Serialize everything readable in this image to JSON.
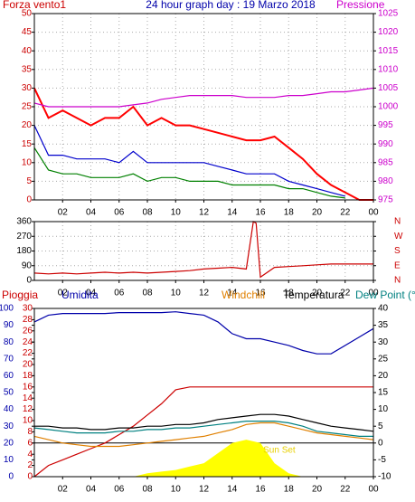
{
  "chart_data": [
    {
      "type": "line",
      "title": "24 hour graph day : 19 Marzo 2018",
      "y_label": "Forza vento1",
      "y2_label": "Pressione",
      "ycolor": "#cc0000",
      "y2color": "#cc00cc",
      "grid": true,
      "x": [
        0,
        1,
        2,
        3,
        4,
        5,
        6,
        7,
        8,
        9,
        10,
        11,
        12,
        13,
        14,
        15,
        16,
        17,
        18,
        19,
        20,
        21,
        22,
        23,
        24
      ],
      "xticks": [
        {
          "value": 2,
          "label": "02"
        },
        {
          "value": 4,
          "label": "04"
        },
        {
          "value": 6,
          "label": "06"
        },
        {
          "value": 8,
          "label": "08"
        },
        10,
        12,
        14,
        16,
        18,
        20,
        22,
        {
          "value": 24,
          "label": "00"
        }
      ],
      "xlim": [
        0,
        24
      ],
      "ylim": [
        0,
        50
      ],
      "yticks": [
        0,
        5,
        10,
        15,
        20,
        25,
        30,
        35,
        40,
        45,
        50
      ],
      "y2lim": [
        975,
        1025
      ],
      "y2ticks": [
        975,
        980,
        985,
        990,
        995,
        1000,
        1005,
        1010,
        1015,
        1020,
        1025
      ],
      "series": [
        {
          "color": "#ff0000",
          "values": [
            30,
            22,
            24,
            22,
            20,
            22,
            22,
            25,
            20,
            22,
            20,
            20,
            19,
            18,
            17,
            16,
            16,
            17,
            14,
            11,
            7,
            4,
            2,
            0,
            0
          ]
        },
        {
          "color": "#008000",
          "values": [
            14,
            8,
            7,
            7,
            6,
            6,
            6,
            7,
            5,
            6,
            6,
            5,
            5,
            5,
            4,
            4,
            4,
            4,
            3,
            3,
            2,
            1,
            0.5,
            null,
            null
          ]
        },
        {
          "color": "#0000cc",
          "values": [
            20,
            12,
            12,
            11,
            11,
            11,
            10,
            13,
            10,
            10,
            10,
            10,
            10,
            9,
            8,
            7,
            7,
            7,
            5,
            4,
            3,
            2,
            1,
            null,
            null
          ]
        },
        {
          "color": "#cc00cc",
          "axis": "y2",
          "values": [
            1001,
            1000,
            1000,
            1000,
            1000,
            1000,
            1000,
            1000.5,
            1001,
            1002,
            1002.5,
            1003,
            1003,
            1003,
            1003,
            1002.5,
            1002.5,
            1002.5,
            1003,
            1003,
            1003.5,
            1004,
            1004,
            1004.5,
            1005
          ]
        }
      ]
    },
    {
      "type": "line",
      "ycolor": "#000000",
      "y2color": "#cc0000",
      "grid": true,
      "x": [
        0,
        1,
        2,
        3,
        4,
        5,
        6,
        7,
        8,
        9,
        10,
        11,
        12,
        13,
        14,
        15,
        15.5,
        15.7,
        16,
        17,
        18,
        19,
        20,
        21,
        22,
        23,
        24
      ],
      "xticks": [
        {
          "value": 2,
          "label": "02"
        },
        {
          "value": 4,
          "label": "04"
        },
        {
          "value": 6,
          "label": "06"
        },
        {
          "value": 8,
          "label": "08"
        },
        10,
        12,
        14,
        16,
        18,
        20,
        22,
        {
          "value": 24,
          "label": "00"
        }
      ],
      "xlim": [
        0,
        24
      ],
      "ylim": [
        0,
        360
      ],
      "yticks": [
        0,
        90,
        180,
        270,
        360
      ],
      "y2lim": [
        0,
        360
      ],
      "y2ticks": [
        {
          "value": 0,
          "label": "N"
        },
        {
          "value": 90,
          "label": "E"
        },
        {
          "value": 180,
          "label": "S"
        },
        {
          "value": 270,
          "label": "W"
        },
        {
          "value": 360,
          "label": "N"
        }
      ],
      "series": [
        {
          "color": "#cc0000",
          "values": [
            45,
            40,
            45,
            40,
            45,
            50,
            45,
            50,
            45,
            50,
            55,
            60,
            70,
            75,
            80,
            70,
            360,
            350,
            20,
            80,
            85,
            90,
            95,
            100,
            100,
            100,
            100
          ]
        }
      ]
    },
    {
      "type": "line",
      "annotation": "Sun Set",
      "ycolor": "#0000aa",
      "y3color": "#cc0000",
      "y2color": "#000000",
      "grid": false,
      "x": [
        0,
        1,
        2,
        3,
        4,
        5,
        6,
        7,
        8,
        9,
        10,
        11,
        12,
        13,
        14,
        15,
        16,
        17,
        18,
        19,
        20,
        21,
        22,
        23,
        24
      ],
      "xticks": [
        {
          "value": 2,
          "label": "02"
        },
        {
          "value": 4,
          "label": "04"
        },
        {
          "value": 6,
          "label": "06"
        },
        {
          "value": 8,
          "label": "08"
        },
        10,
        12,
        14,
        16,
        18,
        20,
        22,
        {
          "value": 24,
          "label": "00"
        }
      ],
      "xlim": [
        0,
        24
      ],
      "ylim": [
        0,
        100
      ],
      "yticks": [
        0,
        10,
        20,
        30,
        40,
        50,
        60,
        70,
        80,
        90,
        100
      ],
      "y3lim": [
        0,
        30
      ],
      "y3ticks": [
        0,
        2,
        4,
        6,
        8,
        10,
        12,
        14,
        16,
        18,
        20,
        22,
        24,
        26,
        28,
        30
      ],
      "y2lim": [
        -10,
        40
      ],
      "y2ticks": [
        -10,
        -5,
        0,
        5,
        10,
        15,
        20,
        25,
        30,
        35,
        40
      ],
      "hline": 0,
      "series": [
        {
          "color": "#ffff00",
          "axis": "y2",
          "fill": true,
          "values": [
            -10,
            -10,
            -10,
            -10,
            -10,
            -10,
            -10,
            -10,
            -9,
            -8.5,
            -8,
            -7,
            -6,
            -3,
            0,
            1,
            0,
            -6,
            -9,
            -10,
            -10,
            -10,
            -10,
            -10,
            -10
          ]
        },
        {
          "name": "Pioggia",
          "color": "#cc0000",
          "axis": "y3",
          "values": [
            0,
            2,
            3,
            4,
            5,
            6,
            7.5,
            9,
            11,
            13,
            15.5,
            16,
            16,
            16,
            16,
            16,
            16,
            16,
            16,
            16,
            16,
            16,
            16,
            16,
            16
          ]
        },
        {
          "name": "Umidita",
          "color": "#0000aa",
          "values": [
            92,
            96,
            97,
            97,
            97,
            97,
            97.5,
            97.5,
            97.5,
            97.5,
            98,
            97,
            96,
            92,
            85,
            82,
            82,
            80,
            78,
            75,
            73,
            73,
            78,
            83,
            88
          ]
        },
        {
          "name": "Windchill",
          "color": "#e08000",
          "axis": "y2",
          "values": [
            2,
            1,
            0,
            -0.5,
            -1,
            -1,
            -1,
            -0.5,
            0,
            0.5,
            1,
            1.5,
            2,
            3,
            4,
            5.5,
            6,
            6,
            5,
            4,
            3,
            2.5,
            2,
            1.5,
            1
          ]
        },
        {
          "name": "Temperatura",
          "color": "#000000",
          "axis": "y2",
          "values": [
            5,
            5,
            4.5,
            4.5,
            4,
            4,
            4.5,
            4.5,
            5,
            5,
            5.5,
            5.5,
            6,
            7,
            7.5,
            8,
            8.5,
            8.5,
            8,
            7,
            6,
            5,
            4.5,
            4,
            3.5
          ]
        },
        {
          "name": "Dew Point (°C",
          "color": "#008080",
          "axis": "y2",
          "values": [
            4.5,
            4,
            3.5,
            3,
            3,
            3,
            3.5,
            3.5,
            4,
            4,
            4.5,
            4.5,
            5,
            5.5,
            6,
            6.5,
            6.5,
            6.5,
            6,
            5,
            3.5,
            3,
            2.5,
            2,
            2
          ]
        }
      ]
    }
  ]
}
